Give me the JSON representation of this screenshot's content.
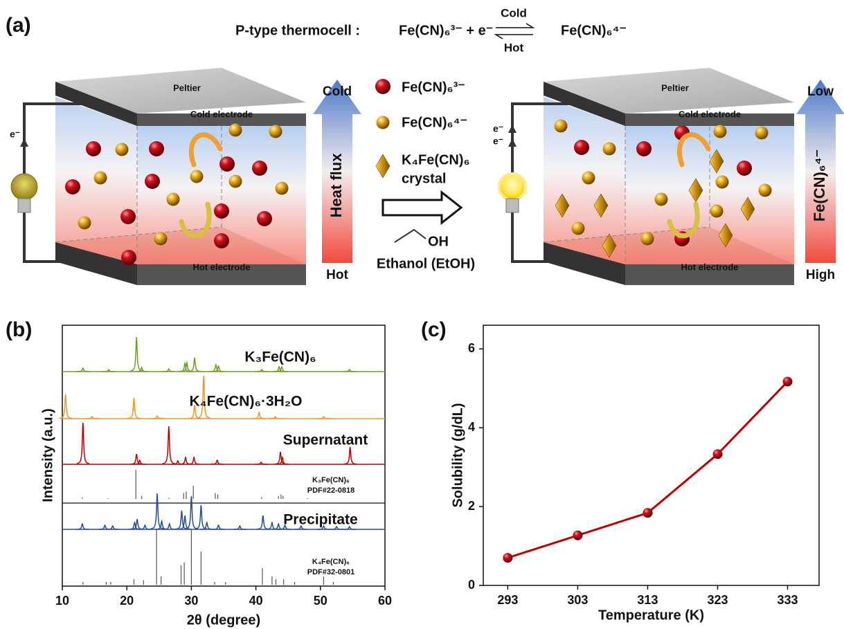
{
  "figure": {
    "panel_labels": [
      "(a)",
      "(b)",
      "(c)"
    ]
  },
  "scheme": {
    "equation_label": "P-type thermocell :",
    "reactant": "Fe(CN)₆³⁻ + e⁻",
    "forward": "Cold",
    "backward": "Hot",
    "product": "Fe(CN)₆⁴⁻",
    "left_cell": {
      "top_plate": "Peltier",
      "top_electrode": "Cold electrode",
      "bottom_electrode": "Hot electrode",
      "electron": "e⁻"
    },
    "left_arrow": {
      "top": "Cold",
      "middle": "Heat flux",
      "bottom": "Hot"
    },
    "legend": [
      "Fe(CN)₆³⁻",
      "Fe(CN)₆⁴⁻",
      [
        "K₄Fe(CN)₆",
        "crystal"
      ]
    ],
    "process": {
      "group": "OH",
      "solvent": "Ethanol (EtOH)"
    },
    "right_cell": {
      "top_plate": "Peltier",
      "top_electrode": "Cold electrode",
      "bottom_electrode": "Hot electrode",
      "electrons": [
        "e⁻",
        "e⁻"
      ]
    },
    "right_arrow": {
      "top": "Low",
      "middle": "Fe(CN)₆⁴⁻",
      "bottom": "High"
    }
  },
  "chart_data": [
    {
      "type": "xrd",
      "xlabel": "2θ (degree)",
      "ylabel": "Intensity (a.u.)",
      "xlim": [
        10,
        60
      ],
      "xticks": [
        10,
        20,
        30,
        40,
        50,
        60
      ],
      "series": [
        {
          "name": "K₃Fe(CN)₆",
          "kind": "trace",
          "color": "#6aa121",
          "x": [
            13.2,
            17.2,
            21.5,
            22.3,
            26.5,
            29.0,
            29.3,
            30.5,
            33.8,
            34.2,
            40.9,
            43.6,
            44.0,
            54.5
          ],
          "values": [
            5,
            3,
            50,
            6,
            4,
            12,
            13,
            20,
            10,
            8,
            3,
            7,
            7,
            3
          ]
        },
        {
          "name": "K₄Fe(CN)₆·3H₂O",
          "kind": "trace",
          "color": "#f7941d",
          "x": [
            10.5,
            14.6,
            21.1,
            24.7,
            30.5,
            31.9,
            40.5,
            43.0,
            50.5
          ],
          "values": [
            35,
            3,
            30,
            4,
            20,
            62,
            9,
            3,
            3
          ]
        },
        {
          "name": "Supernatant",
          "kind": "trace",
          "color": "#c00000",
          "x": [
            13.2,
            21.5,
            22.0,
            26.5,
            27.9,
            29.1,
            30.4,
            34.0,
            40.8,
            43.8,
            44.1,
            54.6
          ],
          "values": [
            60,
            15,
            6,
            55,
            5,
            10,
            10,
            6,
            3,
            18,
            10,
            25
          ]
        },
        {
          "name": "K₃Fe(CN)₆",
          "card": "PDF#22-0818",
          "kind": "sticks",
          "color": "#555555",
          "x": [
            13.1,
            17.1,
            21.4,
            22.3,
            26.5,
            28.8,
            29.2,
            30.3,
            33.7,
            34.1,
            40.9,
            43.5,
            43.9,
            44.2,
            48.0
          ],
          "values": [
            5,
            2,
            100,
            10,
            4,
            20,
            25,
            45,
            20,
            15,
            6,
            10,
            15,
            10,
            2
          ]
        },
        {
          "name": "Precipitate",
          "kind": "trace",
          "color": "#1f4e9c",
          "x": [
            13.1,
            16.6,
            17.8,
            21.2,
            21.6,
            22.8,
            24.7,
            25.4,
            26.6,
            28.5,
            29.0,
            30.0,
            31.5,
            32.4,
            34.2,
            37.5,
            41.1,
            42.5,
            43.5,
            44.5,
            47.0,
            50.5,
            52.5,
            54.5
          ],
          "values": [
            8,
            6,
            5,
            10,
            15,
            6,
            52,
            12,
            8,
            27,
            20,
            48,
            35,
            10,
            6,
            5,
            20,
            10,
            8,
            6,
            5,
            5,
            4,
            4
          ]
        },
        {
          "name": "K₄Fe(CN)₆",
          "card": "PDF#32-0801",
          "kind": "sticks",
          "color": "#555555",
          "x": [
            13.2,
            16.8,
            17.5,
            21.1,
            22.6,
            24.6,
            25.3,
            28.4,
            28.9,
            30.0,
            31.5,
            33.6,
            35.3,
            41.0,
            42.5,
            43.1,
            44.3,
            46.0,
            50.5,
            52.0
          ],
          "values": [
            5,
            5,
            5,
            10,
            8,
            100,
            15,
            35,
            40,
            100,
            60,
            5,
            5,
            30,
            15,
            10,
            10,
            5,
            15,
            5
          ]
        }
      ]
    },
    {
      "type": "line",
      "xlabel": "Temperature (K)",
      "ylabel": "Solubility (g/dL)",
      "color": "#c00000",
      "x": [
        293,
        303,
        313,
        323,
        333
      ],
      "values": [
        0.7,
        1.27,
        1.84,
        3.33,
        5.17
      ],
      "xlim": [
        289.5,
        337.5
      ],
      "xticks": [
        293,
        303,
        313,
        323,
        333
      ],
      "ylim": [
        0,
        6.6
      ],
      "yticks": [
        0,
        2,
        4,
        6
      ]
    }
  ]
}
